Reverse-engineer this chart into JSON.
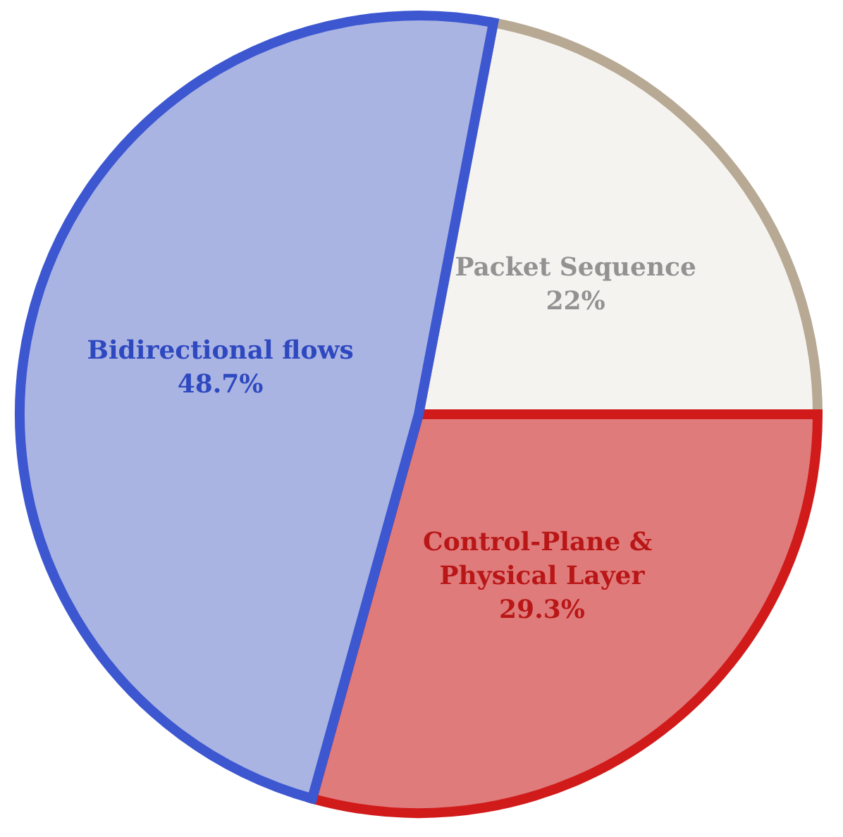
{
  "chart_data": {
    "type": "pie",
    "categories": [
      "Packet Sequence",
      "Control-Plane & Physical Layer",
      "Bidirectional flows"
    ],
    "values": [
      22,
      29.3,
      48.7
    ],
    "colors": [
      "#f5f3f0",
      "#e07b7b",
      "#aab4e2"
    ],
    "value_labels": [
      "22%",
      "29.3%",
      "48.7%"
    ]
  }
}
